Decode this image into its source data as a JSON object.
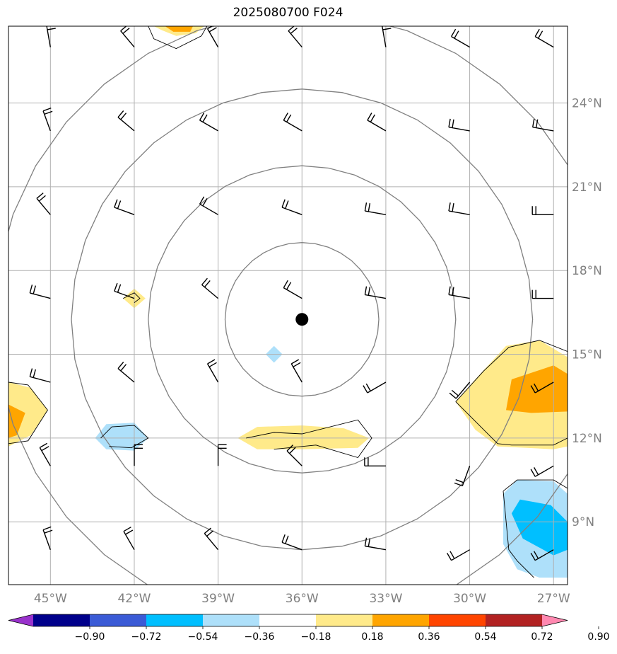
{
  "title": "2025080700 F024",
  "map": {
    "lon_range": [
      -46.5,
      -26.5
    ],
    "lat_range": [
      6.75,
      26.75
    ],
    "lon_ticks": [
      {
        "value": -45,
        "label": "45°W"
      },
      {
        "value": -42,
        "label": "42°W"
      },
      {
        "value": -39,
        "label": "39°W"
      },
      {
        "value": -36,
        "label": "36°W"
      },
      {
        "value": -33,
        "label": "33°W"
      },
      {
        "value": -30,
        "label": "30°W"
      },
      {
        "value": -27,
        "label": "27°W"
      }
    ],
    "lat_ticks": [
      {
        "value": 24,
        "label": "24°N"
      },
      {
        "value": 21,
        "label": "21°N"
      },
      {
        "value": 18,
        "label": "18°N"
      },
      {
        "value": 15,
        "label": "15°N"
      },
      {
        "value": 12,
        "label": "12°N"
      },
      {
        "value": 9,
        "label": "9°N"
      }
    ],
    "storm_center": {
      "lon": -36,
      "lat": 16.25
    },
    "range_ring_radii_deg": [
      2.75,
      5.5,
      8.25,
      11
    ],
    "grid": true,
    "grid_color": "#b0b0b0",
    "ring_color": "#808080",
    "tick_label_color": "#808080"
  },
  "contours": [
    {
      "level": 0.27,
      "color": "#ffea8a",
      "points": [
        [
          -41,
          26.6
        ],
        [
          -40.5,
          26.4
        ],
        [
          -39.8,
          26.5
        ],
        [
          -39.5,
          26.75
        ],
        [
          -41.3,
          26.75
        ]
      ]
    },
    {
      "level": 0.45,
      "color": "#ffa500",
      "points": [
        [
          -40.9,
          26.75
        ],
        [
          -40.6,
          26.55
        ],
        [
          -40.0,
          26.55
        ],
        [
          -39.9,
          26.75
        ]
      ]
    },
    {
      "level": 0.27,
      "color": "#ffea8a",
      "points": [
        [
          -42.4,
          17.0
        ],
        [
          -42.0,
          17.35
        ],
        [
          -41.6,
          17.0
        ],
        [
          -42.0,
          16.65
        ]
      ]
    },
    {
      "level": -0.27,
      "color": "#aee0fa",
      "points": [
        [
          -37.3,
          15.0
        ],
        [
          -37.0,
          15.3
        ],
        [
          -36.7,
          15.0
        ],
        [
          -37.0,
          14.7
        ]
      ]
    },
    {
      "level": 0.27,
      "color": "#ffea8a",
      "points": [
        [
          -46.5,
          14.0
        ],
        [
          -45.7,
          13.8
        ],
        [
          -45.1,
          13.0
        ],
        [
          -45.7,
          12.1
        ],
        [
          -46.5,
          11.7
        ]
      ]
    },
    {
      "level": 0.45,
      "color": "#ffa500",
      "points": [
        [
          -46.5,
          13.2
        ],
        [
          -45.9,
          12.9
        ],
        [
          -46.2,
          12.1
        ],
        [
          -46.5,
          12.0
        ]
      ]
    },
    {
      "level": -0.27,
      "color": "#aee0fa",
      "points": [
        [
          -43.4,
          12.0
        ],
        [
          -43.0,
          12.5
        ],
        [
          -42.0,
          12.55
        ],
        [
          -41.5,
          12.0
        ],
        [
          -42.0,
          11.55
        ],
        [
          -43.0,
          11.6
        ]
      ]
    },
    {
      "level": 0.27,
      "color": "#ffea8a",
      "points": [
        [
          -38.3,
          12.0
        ],
        [
          -37.6,
          12.4
        ],
        [
          -36.0,
          12.45
        ],
        [
          -34.5,
          12.35
        ],
        [
          -33.6,
          12.0
        ],
        [
          -34.0,
          11.65
        ],
        [
          -36.0,
          11.6
        ],
        [
          -37.6,
          11.6
        ]
      ]
    },
    {
      "level": 0.27,
      "color": "#ffea8a",
      "points": [
        [
          -30.5,
          13.3
        ],
        [
          -29.8,
          14.1
        ],
        [
          -28.7,
          15.3
        ],
        [
          -27.5,
          15.5
        ],
        [
          -26.5,
          14.9
        ],
        [
          -26.5,
          11.7
        ],
        [
          -27.0,
          11.6
        ],
        [
          -29.0,
          11.7
        ],
        [
          -29.8,
          12.3
        ]
      ]
    },
    {
      "level": 0.45,
      "color": "#ffa500",
      "points": [
        [
          -28.7,
          13.0
        ],
        [
          -28.5,
          14.1
        ],
        [
          -27.0,
          14.6
        ],
        [
          -26.5,
          14.3
        ],
        [
          -26.5,
          12.95
        ],
        [
          -27.8,
          12.9
        ]
      ]
    },
    {
      "level": -0.27,
      "color": "#aee0fa",
      "points": [
        [
          -28.8,
          10.0
        ],
        [
          -28.3,
          10.5
        ],
        [
          -27.0,
          10.45
        ],
        [
          -26.5,
          10.0
        ],
        [
          -26.5,
          7.0
        ],
        [
          -27.5,
          7.0
        ],
        [
          -28.3,
          7.3
        ],
        [
          -28.8,
          8.2
        ]
      ]
    },
    {
      "level": -0.45,
      "color": "#00bfff",
      "points": [
        [
          -28.5,
          9.3
        ],
        [
          -28.2,
          9.8
        ],
        [
          -27.1,
          9.6
        ],
        [
          -26.5,
          9.0
        ],
        [
          -26.5,
          8.0
        ],
        [
          -27.0,
          7.8
        ],
        [
          -28.1,
          8.4
        ]
      ]
    }
  ],
  "outline_contours": [
    [
      [
        -41.5,
        26.75
      ],
      [
        -41.3,
        26.3
      ],
      [
        -40.5,
        25.95
      ],
      [
        -39.6,
        26.4
      ],
      [
        -39.4,
        26.75
      ]
    ],
    [
      [
        -42.4,
        17.0
      ],
      [
        -42.0,
        17.2
      ],
      [
        -41.8,
        17.0
      ],
      [
        -42.0,
        16.85
      ]
    ],
    [
      [
        -46.5,
        14.0
      ],
      [
        -45.8,
        13.9
      ],
      [
        -45.1,
        13.0
      ],
      [
        -45.8,
        11.9
      ],
      [
        -46.5,
        11.8
      ]
    ],
    [
      [
        -43.2,
        12.0
      ],
      [
        -42.8,
        12.4
      ],
      [
        -42.0,
        12.45
      ],
      [
        -41.5,
        12.0
      ],
      [
        -42.1,
        11.65
      ],
      [
        -42.9,
        11.7
      ]
    ],
    [
      [
        -38.0,
        12.0
      ],
      [
        -37.0,
        12.2
      ],
      [
        -36.0,
        12.15
      ],
      [
        -34.0,
        12.65
      ],
      [
        -33.5,
        12.0
      ],
      [
        -34.0,
        11.3
      ],
      [
        -35.5,
        11.75
      ],
      [
        -37.0,
        11.6
      ]
    ],
    [
      [
        -30.5,
        13.3
      ],
      [
        -29.5,
        14.4
      ],
      [
        -28.6,
        15.25
      ],
      [
        -27.5,
        15.5
      ],
      [
        -26.5,
        15.1
      ]
    ],
    [
      [
        -30.5,
        13.3
      ],
      [
        -29.0,
        11.8
      ],
      [
        -28.5,
        11.75
      ],
      [
        -27.0,
        11.75
      ],
      [
        -26.5,
        12.0
      ]
    ],
    [
      [
        -28.8,
        10.1
      ],
      [
        -28.3,
        10.5
      ],
      [
        -27.0,
        10.5
      ],
      [
        -26.5,
        10.2
      ]
    ],
    [
      [
        -28.8,
        10.1
      ],
      [
        -28.6,
        8.0
      ],
      [
        -28.3,
        7.6
      ],
      [
        -27.7,
        7.0
      ]
    ]
  ],
  "colorbar": {
    "levels": [
      -0.9,
      -0.72,
      -0.54,
      -0.36,
      -0.18,
      0.18,
      0.36,
      0.54,
      0.72,
      0.9
    ],
    "labels": [
      "−0.90",
      "−0.72",
      "−0.54",
      "−0.36",
      "−0.18",
      "0.18",
      "0.36",
      "0.54",
      "0.72",
      "0.90"
    ],
    "colors": [
      "#9932cc",
      "#00008b",
      "#3b5bd6",
      "#00bfff",
      "#aee0fa",
      "#ffffff",
      "#ffea8a",
      "#ffa500",
      "#ff4500",
      "#b22222",
      "#ff88b0"
    ],
    "extend": "both"
  },
  "wind_barbs": {
    "lons": [
      -45,
      -42,
      -39,
      -36,
      -33,
      -30,
      -27
    ],
    "lats": [
      26,
      23,
      20,
      17,
      14,
      11,
      8
    ],
    "directions_deg": [
      [
        350,
        320,
        330,
        320,
        350,
        300,
        300
      ],
      [
        340,
        310,
        300,
        300,
        300,
        280,
        280
      ],
      [
        320,
        290,
        300,
        290,
        280,
        280,
        270
      ],
      [
        285,
        290,
        310,
        300,
        280,
        280,
        270
      ],
      [
        285,
        310,
        330,
        330,
        240,
        220,
        240
      ],
      [
        330,
        0,
        0,
        315,
        270,
        200,
        240
      ],
      [
        340,
        330,
        320,
        290,
        280,
        240,
        240
      ]
    ]
  }
}
